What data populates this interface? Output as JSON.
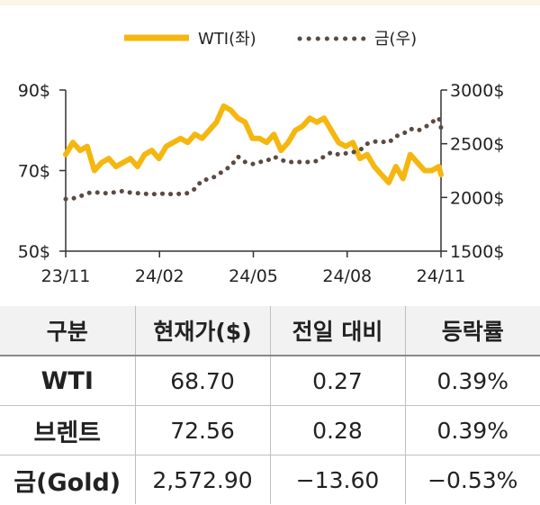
{
  "chart_data": {
    "type": "line",
    "x_ticks": [
      "23/11",
      "24/02",
      "24/05",
      "24/08",
      "24/11"
    ],
    "y_left": {
      "ticks": [
        "90$",
        "70$",
        "50$"
      ],
      "values": [
        90,
        70,
        50
      ],
      "range": [
        50,
        90
      ]
    },
    "y_right": {
      "ticks": [
        "3000$",
        "2500$",
        "2000$",
        "1500$"
      ],
      "values": [
        3000,
        2500,
        2000,
        1500
      ],
      "range": [
        1500,
        3000
      ]
    },
    "legend_placement": "top-center",
    "series": [
      {
        "name": "WTI(좌)",
        "axis": "left",
        "style": "solid",
        "color": "#f5b70f",
        "x": [
          "2023-11-01",
          "2023-11-08",
          "2023-11-15",
          "2023-11-22",
          "2023-11-29",
          "2023-12-06",
          "2023-12-13",
          "2023-12-20",
          "2023-12-27",
          "2024-01-03",
          "2024-01-10",
          "2024-01-17",
          "2024-01-24",
          "2024-01-31",
          "2024-02-07",
          "2024-02-14",
          "2024-02-21",
          "2024-02-28",
          "2024-03-06",
          "2024-03-13",
          "2024-03-20",
          "2024-03-27",
          "2024-04-03",
          "2024-04-10",
          "2024-04-17",
          "2024-04-24",
          "2024-05-01",
          "2024-05-08",
          "2024-05-15",
          "2024-05-22",
          "2024-05-29",
          "2024-06-05",
          "2024-06-12",
          "2024-06-19",
          "2024-06-26",
          "2024-07-03",
          "2024-07-10",
          "2024-07-17",
          "2024-07-24",
          "2024-07-31",
          "2024-08-07",
          "2024-08-14",
          "2024-08-21",
          "2024-08-28",
          "2024-09-04",
          "2024-09-11",
          "2024-09-18",
          "2024-09-25",
          "2024-10-02",
          "2024-10-09",
          "2024-10-16",
          "2024-10-23",
          "2024-10-30",
          "2024-11-01"
        ],
        "values": [
          74,
          77,
          75,
          76,
          70,
          72,
          73,
          71,
          72,
          73,
          71,
          74,
          75,
          73,
          76,
          77,
          78,
          77,
          79,
          78,
          80,
          82,
          86,
          85,
          83,
          82,
          78,
          78,
          77,
          79,
          75,
          77,
          80,
          81,
          83,
          82,
          83,
          80,
          77,
          76,
          77,
          73,
          74,
          71,
          69,
          67,
          71,
          68,
          74,
          72,
          70,
          70,
          71,
          69
        ]
      },
      {
        "name": "금(우)",
        "axis": "right",
        "style": "dotted",
        "color": "#5a4a42",
        "x": [
          "2023-11-01",
          "2023-11-08",
          "2023-11-15",
          "2023-11-22",
          "2023-11-29",
          "2023-12-06",
          "2023-12-13",
          "2023-12-20",
          "2023-12-27",
          "2024-01-03",
          "2024-01-10",
          "2024-01-17",
          "2024-01-24",
          "2024-01-31",
          "2024-02-07",
          "2024-02-14",
          "2024-02-21",
          "2024-02-28",
          "2024-03-06",
          "2024-03-13",
          "2024-03-20",
          "2024-03-27",
          "2024-04-03",
          "2024-04-10",
          "2024-04-17",
          "2024-04-24",
          "2024-05-01",
          "2024-05-08",
          "2024-05-15",
          "2024-05-22",
          "2024-05-29",
          "2024-06-05",
          "2024-06-12",
          "2024-06-19",
          "2024-06-26",
          "2024-07-03",
          "2024-07-10",
          "2024-07-17",
          "2024-07-24",
          "2024-07-31",
          "2024-08-07",
          "2024-08-14",
          "2024-08-21",
          "2024-08-28",
          "2024-09-04",
          "2024-09-11",
          "2024-09-18",
          "2024-09-25",
          "2024-10-02",
          "2024-10-09",
          "2024-10-16",
          "2024-10-23",
          "2024-10-30",
          "2024-11-01"
        ],
        "values": [
          1985,
          1990,
          2010,
          2040,
          2050,
          2040,
          2040,
          2050,
          2060,
          2045,
          2040,
          2035,
          2030,
          2035,
          2035,
          2030,
          2035,
          2040,
          2080,
          2160,
          2170,
          2200,
          2250,
          2290,
          2380,
          2330,
          2310,
          2330,
          2340,
          2380,
          2350,
          2330,
          2330,
          2330,
          2330,
          2340,
          2380,
          2420,
          2400,
          2410,
          2420,
          2440,
          2500,
          2520,
          2520,
          2510,
          2570,
          2590,
          2640,
          2620,
          2650,
          2700,
          2740,
          2650
        ]
      }
    ]
  },
  "table": {
    "headers": [
      "구분",
      "현재가($)",
      "전일 대비",
      "등락률"
    ],
    "rows": [
      {
        "name": "WTI",
        "price": "68.70",
        "change": "0.27",
        "rate": "0.39%"
      },
      {
        "name": "브렌트",
        "price": "72.56",
        "change": "0.28",
        "rate": "0.39%"
      },
      {
        "name": "금(Gold)",
        "price": "2,572.90",
        "change": "−13.60",
        "rate": "−0.53%"
      }
    ]
  },
  "colors": {
    "wti": "#f5b70f",
    "gold": "#5a4a42",
    "header_bg": "#f2f2f2",
    "top_band": "#fcf4e6"
  }
}
